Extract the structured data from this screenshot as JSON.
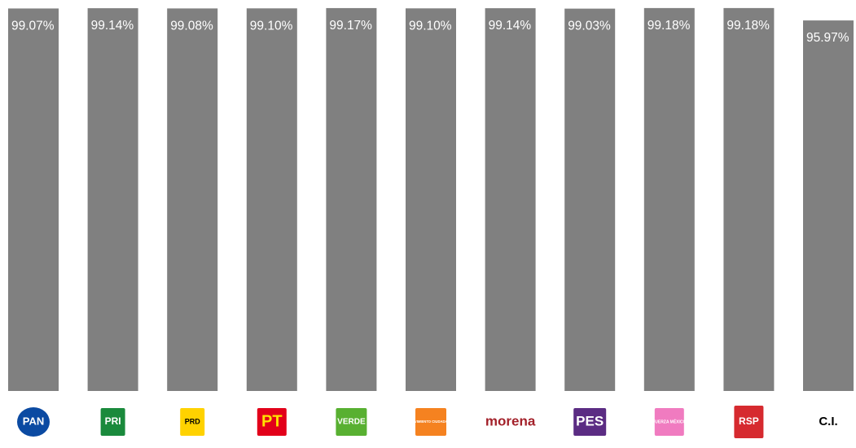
{
  "chart_data": {
    "type": "bar",
    "categories": [
      "PAN",
      "PRI",
      "PRD",
      "PT",
      "VERDE",
      "MOVIMIENTO CIUDADANO",
      "morena",
      "PES",
      "FUERZA MÉXICO",
      "RSP",
      "C.I."
    ],
    "values": [
      99.07,
      99.14,
      99.08,
      99.1,
      99.17,
      99.1,
      99.14,
      99.03,
      99.18,
      99.18,
      95.97
    ],
    "value_labels": [
      "99.07%",
      "99.14%",
      "99.08%",
      "99.10%",
      "99.17%",
      "99.10%",
      "99.14%",
      "99.03%",
      "99.18%",
      "99.18%",
      "95.97%"
    ],
    "color": "#808080",
    "ylim": [
      0,
      100
    ]
  }
}
